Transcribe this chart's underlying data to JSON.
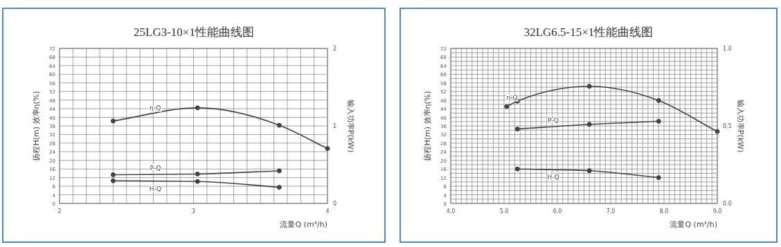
{
  "chart_data": [
    {
      "type": "line",
      "title": "25LG3-10×1性能曲线图",
      "xlabel": "流量Q (m³/h)",
      "ylabel": "扬程H(m)  效率η(%)",
      "y2label": "输入功率P(kW)",
      "xlim": [
        2,
        4
      ],
      "xticks": [
        {
          "value": 2,
          "label": "2"
        },
        {
          "value": 2.1,
          "label": null
        },
        {
          "value": 2.2,
          "label": null
        },
        {
          "value": 2.3,
          "label": null
        },
        {
          "value": 2.4,
          "label": null
        },
        {
          "value": 2.5,
          "label": null
        },
        {
          "value": 2.6,
          "label": null
        },
        {
          "value": 2.7,
          "label": null
        },
        {
          "value": 2.8,
          "label": null
        },
        {
          "value": 2.9,
          "label": null
        },
        {
          "value": 3,
          "label": "3"
        },
        {
          "value": 3.1,
          "label": null
        },
        {
          "value": 3.2,
          "label": null
        },
        {
          "value": 3.3,
          "label": null
        },
        {
          "value": 3.4,
          "label": null
        },
        {
          "value": 3.5,
          "label": null
        },
        {
          "value": 3.6,
          "label": null
        },
        {
          "value": 3.7,
          "label": null
        },
        {
          "value": 3.8,
          "label": null
        },
        {
          "value": 3.9,
          "label": null
        },
        {
          "value": 4,
          "label": "4"
        }
      ],
      "ylim": [
        0,
        72
      ],
      "yticks": [
        0,
        4,
        8,
        12,
        16,
        20,
        24,
        28,
        32,
        36,
        40,
        44,
        48,
        52,
        56,
        60,
        64,
        68,
        72
      ],
      "y2lim": [
        0,
        2
      ],
      "y2ticks": [
        0,
        1,
        2
      ],
      "grid": true,
      "marker": "circle",
      "line_style": "solid",
      "series": [
        {
          "name": "η-Q",
          "color": "#3a4838",
          "x": [
            2.4,
            3.03,
            3.64,
            4.0
          ],
          "values": [
            38.3,
            44.4,
            36.3,
            25.5
          ]
        },
        {
          "name": "P-Q",
          "color": "#3a4838",
          "axis": "y2",
          "x": [
            2.4,
            3.03,
            3.64
          ],
          "values": [
            0.37,
            0.38,
            0.42
          ]
        },
        {
          "name": "H-Q",
          "color": "#3a4838",
          "x": [
            2.4,
            3.03,
            3.64
          ],
          "values": [
            10.5,
            10.2,
            7.5
          ]
        }
      ]
    },
    {
      "type": "line",
      "title": "32LG6.5-15×1性能曲线图",
      "xlabel": "流量Q (m³/h)",
      "ylabel": "扬程H(m)  效率η(%)",
      "y2label": "输入功率P(kW)",
      "xlim": [
        4,
        9
      ],
      "xticks": [
        {
          "value": 4,
          "label": "4.0"
        },
        {
          "value": 4.1,
          "label": null
        },
        {
          "value": 4.2,
          "label": null
        },
        {
          "value": 4.3,
          "label": null
        },
        {
          "value": 4.4,
          "label": null
        },
        {
          "value": 4.5,
          "label": null
        },
        {
          "value": 4.6,
          "label": null
        },
        {
          "value": 4.7,
          "label": null
        },
        {
          "value": 4.8,
          "label": null
        },
        {
          "value": 4.9,
          "label": null
        },
        {
          "value": 5,
          "label": "5.0"
        },
        {
          "value": 5.1,
          "label": null
        },
        {
          "value": 5.2,
          "label": null
        },
        {
          "value": 5.3,
          "label": null
        },
        {
          "value": 5.4,
          "label": null
        },
        {
          "value": 5.5,
          "label": null
        },
        {
          "value": 5.6,
          "label": null
        },
        {
          "value": 5.7,
          "label": null
        },
        {
          "value": 5.8,
          "label": null
        },
        {
          "value": 5.9,
          "label": null
        },
        {
          "value": 6,
          "label": "6.0"
        },
        {
          "value": 6.1,
          "label": null
        },
        {
          "value": 6.2,
          "label": null
        },
        {
          "value": 6.3,
          "label": null
        },
        {
          "value": 6.4,
          "label": null
        },
        {
          "value": 6.5,
          "label": null
        },
        {
          "value": 6.6,
          "label": null
        },
        {
          "value": 6.7,
          "label": null
        },
        {
          "value": 6.8,
          "label": null
        },
        {
          "value": 6.9,
          "label": null
        },
        {
          "value": 7,
          "label": "7.0"
        },
        {
          "value": 7.1,
          "label": null
        },
        {
          "value": 7.2,
          "label": null
        },
        {
          "value": 7.3,
          "label": null
        },
        {
          "value": 7.4,
          "label": null
        },
        {
          "value": 7.5,
          "label": null
        },
        {
          "value": 7.6,
          "label": null
        },
        {
          "value": 7.7,
          "label": null
        },
        {
          "value": 7.8,
          "label": null
        },
        {
          "value": 7.9,
          "label": null
        },
        {
          "value": 8,
          "label": "8.0"
        },
        {
          "value": 8.1,
          "label": null
        },
        {
          "value": 8.2,
          "label": null
        },
        {
          "value": 8.3,
          "label": null
        },
        {
          "value": 8.4,
          "label": null
        },
        {
          "value": 8.5,
          "label": null
        },
        {
          "value": 8.6,
          "label": null
        },
        {
          "value": 8.7,
          "label": null
        },
        {
          "value": 8.8,
          "label": null
        },
        {
          "value": 8.9,
          "label": null
        },
        {
          "value": 9,
          "label": "9.0"
        }
      ],
      "ylim": [
        0,
        72
      ],
      "yticks": [
        0,
        {
          "value": 2,
          "label": null
        },
        4,
        {
          "value": 6,
          "label": null
        },
        8,
        {
          "value": 10,
          "label": null
        },
        12,
        {
          "value": 14,
          "label": null
        },
        16,
        {
          "value": 18,
          "label": null
        },
        20,
        {
          "value": 22,
          "label": null
        },
        24,
        {
          "value": 26,
          "label": null
        },
        28,
        {
          "value": 30,
          "label": null
        },
        32,
        {
          "value": 34,
          "label": null
        },
        36,
        {
          "value": 38,
          "label": null
        },
        40,
        {
          "value": 42,
          "label": null
        },
        44,
        {
          "value": 46,
          "label": null
        },
        48,
        {
          "value": 50,
          "label": null
        },
        52,
        {
          "value": 54,
          "label": null
        },
        56,
        {
          "value": 58,
          "label": null
        },
        60,
        {
          "value": 62,
          "label": null
        },
        64,
        {
          "value": 66,
          "label": null
        },
        68,
        {
          "value": 70,
          "label": null
        },
        72
      ],
      "y2lim": [
        0,
        1
      ],
      "y2ticks": [
        {
          "value": 0,
          "label": "0.0"
        },
        {
          "value": 0.5,
          "label": "0.5"
        },
        {
          "value": 1,
          "label": "1.0"
        }
      ],
      "grid": true,
      "marker": "circle",
      "line_style": "solid",
      "series": [
        {
          "name": "η-Q",
          "color": "#3a4838",
          "x": [
            5.05,
            5.25,
            6.6,
            7.9,
            9.0
          ],
          "values": [
            45,
            47.5,
            54.4,
            47.8,
            33.4
          ]
        },
        {
          "name": "P-Q",
          "color": "#3a4838",
          "axis": "y2",
          "x": [
            5.25,
            6.6,
            7.9
          ],
          "values": [
            0.48,
            0.51,
            0.53
          ]
        },
        {
          "name": "H-Q",
          "color": "#3a4838",
          "x": [
            5.25,
            6.6,
            7.9
          ],
          "values": [
            16,
            15.2,
            12
          ]
        }
      ]
    }
  ]
}
